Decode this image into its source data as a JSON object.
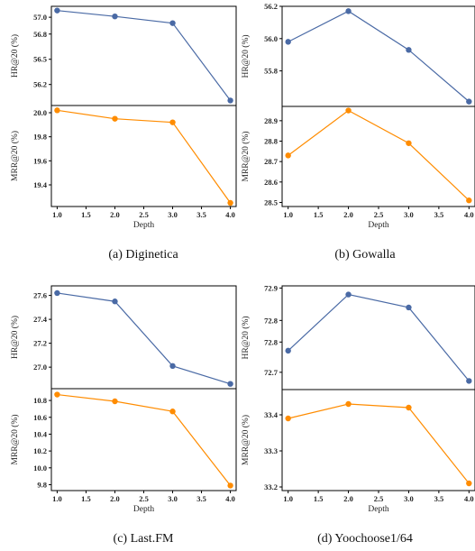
{
  "colors": {
    "hr_series": "#4a6aa5",
    "mrr_series": "#ff8c00",
    "axis": "#000000"
  },
  "chart_data": [
    {
      "type": "line",
      "caption": "(a)  Diginetica",
      "xlabel": "Depth",
      "x": [
        1.0,
        2.0,
        3.0,
        4.0
      ],
      "xticks": [
        "1.0",
        "1.5",
        "2.0",
        "2.5",
        "3.0",
        "3.5",
        "4.0"
      ],
      "xlim": [
        0.9,
        4.1
      ],
      "panels": [
        {
          "ylabel": "HR@20 (%)",
          "ylim": [
            55.95,
            57.13
          ],
          "yticks": [
            "56.2",
            "56.5",
            "56.8",
            "57.0"
          ],
          "ytick_values": [
            56.2,
            56.5,
            56.8,
            57.0
          ],
          "values": [
            57.08,
            57.01,
            56.93,
            56.01
          ]
        },
        {
          "ylabel": "MRR@20 (%)",
          "ylim": [
            19.22,
            20.06
          ],
          "yticks": [
            "19.4",
            "19.6",
            "19.8",
            "20.0"
          ],
          "ytick_values": [
            19.4,
            19.6,
            19.8,
            20.0
          ],
          "values": [
            20.02,
            19.95,
            19.92,
            19.25
          ]
        }
      ]
    },
    {
      "type": "line",
      "caption": "(b)  Gowalla",
      "xlabel": "Depth",
      "x": [
        1.0,
        2.0,
        3.0,
        4.0
      ],
      "xticks": [
        "1.0",
        "1.5",
        "2.0",
        "2.5",
        "3.0",
        "3.5",
        "4.0"
      ],
      "xlim": [
        0.9,
        4.1
      ],
      "panels": [
        {
          "ylabel": "HR@20 (%)",
          "ylim": [
            55.58,
            56.2
          ],
          "yticks": [
            "55.8",
            "56.0",
            "56.2"
          ],
          "ytick_values": [
            55.8,
            56.0,
            56.2
          ],
          "values": [
            55.98,
            56.17,
            55.93,
            55.61
          ]
        },
        {
          "ylabel": "MRR@20 (%)",
          "ylim": [
            28.48,
            28.97
          ],
          "yticks": [
            "28.5",
            "28.6",
            "28.7",
            "28.8",
            "28.9"
          ],
          "ytick_values": [
            28.5,
            28.6,
            28.7,
            28.8,
            28.9
          ],
          "values": [
            28.73,
            28.95,
            28.79,
            28.51
          ]
        }
      ]
    },
    {
      "type": "line",
      "caption": "(c)  Last.FM",
      "xlabel": "Depth",
      "x": [
        1.0,
        2.0,
        3.0,
        4.0
      ],
      "xticks": [
        "1.0",
        "1.5",
        "2.0",
        "2.5",
        "3.0",
        "3.5",
        "4.0"
      ],
      "xlim": [
        0.9,
        4.1
      ],
      "panels": [
        {
          "ylabel": "HR@20 (%)",
          "ylim": [
            26.82,
            27.68
          ],
          "yticks": [
            "27.0",
            "27.2",
            "27.4",
            "27.6"
          ],
          "ytick_values": [
            27.0,
            27.2,
            27.4,
            27.6
          ],
          "values": [
            27.62,
            27.55,
            27.01,
            26.86
          ]
        },
        {
          "ylabel": "MRR@20 (%)",
          "ylim": [
            9.73,
            10.94
          ],
          "yticks": [
            "9.8",
            "10.0",
            "10.2",
            "10.4",
            "10.6",
            "10.8"
          ],
          "ytick_values": [
            9.8,
            10.0,
            10.2,
            10.4,
            10.6,
            10.8
          ],
          "values": [
            10.87,
            10.79,
            10.67,
            9.79
          ]
        }
      ]
    },
    {
      "type": "line",
      "caption": "(d)  Yoochoose1/64",
      "xlabel": "Depth",
      "x": [
        1.0,
        2.0,
        3.0,
        4.0
      ],
      "xticks": [
        "1.0",
        "1.5",
        "2.0",
        "2.5",
        "3.0",
        "3.5",
        "4.0"
      ],
      "xlim": [
        0.9,
        4.1
      ],
      "panels": [
        {
          "ylabel": "HR@20 (%)",
          "ylim": [
            72.66,
            72.9
          ],
          "yticks": [
            "72.7",
            "72.8",
            "72.8",
            "72.9"
          ],
          "ytick_values": [
            72.7,
            72.77,
            72.82,
            72.895
          ],
          "values": [
            72.75,
            72.88,
            72.85,
            72.68
          ]
        },
        {
          "ylabel": "MRR@20 (%)",
          "ylim": [
            33.19,
            33.47
          ],
          "yticks": [
            "33.2",
            "33.3",
            "33.4"
          ],
          "ytick_values": [
            33.2,
            33.3,
            33.4
          ],
          "values": [
            33.39,
            33.43,
            33.42,
            33.21
          ]
        }
      ]
    }
  ]
}
